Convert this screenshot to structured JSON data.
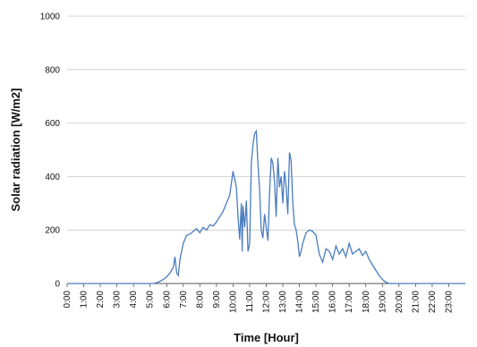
{
  "chart_data": {
    "type": "line",
    "title": "",
    "xlabel": "Time [Hour]",
    "ylabel": "Solar radiation [W/m2]",
    "ylim": [
      0,
      1000
    ],
    "xlim": [
      0,
      24
    ],
    "yticks": [
      0,
      200,
      400,
      600,
      800,
      1000
    ],
    "xtick_labels": [
      "0:00",
      "1:00",
      "2:00",
      "3:00",
      "4:00",
      "5:00",
      "6:00",
      "7:00",
      "8:00",
      "9:00",
      "10:00",
      "11:00",
      "12:00",
      "13:00",
      "14:00",
      "15:00",
      "16:00",
      "17:00",
      "18:00",
      "19:00",
      "20:00",
      "21:00",
      "22:00",
      "23:00"
    ],
    "grid": true,
    "series_color": "#4a7cc0",
    "series": [
      {
        "x": [
          0,
          5.2,
          5.5,
          5.8,
          6.0,
          6.2,
          6.4,
          6.5,
          6.6,
          6.7,
          6.8,
          6.9,
          7.0,
          7.2,
          7.4,
          7.6,
          7.8,
          8.0,
          8.2,
          8.4,
          8.6,
          8.8,
          9.0,
          9.2,
          9.4,
          9.6,
          9.8,
          10.0,
          10.2,
          10.3,
          10.4,
          10.5,
          10.55,
          10.6,
          10.7,
          10.8,
          10.9,
          11.0,
          11.1,
          11.2,
          11.3,
          11.4,
          11.5,
          11.6,
          11.7,
          11.8,
          11.9,
          12.0,
          12.1,
          12.2,
          12.3,
          12.4,
          12.5,
          12.6,
          12.7,
          12.8,
          12.9,
          13.0,
          13.1,
          13.2,
          13.3,
          13.4,
          13.5,
          13.6,
          13.7,
          13.8,
          13.9,
          14.0,
          14.1,
          14.2,
          14.4,
          14.6,
          14.8,
          15.0,
          15.2,
          15.4,
          15.6,
          15.8,
          16.0,
          16.2,
          16.4,
          16.6,
          16.8,
          17.0,
          17.2,
          17.4,
          17.6,
          17.8,
          18.0,
          18.2,
          18.4,
          18.6,
          18.8,
          19.0,
          19.2,
          19.4,
          24
        ],
        "y": [
          0,
          0,
          5,
          15,
          25,
          40,
          60,
          100,
          40,
          30,
          90,
          120,
          150,
          180,
          185,
          195,
          205,
          190,
          210,
          200,
          220,
          215,
          230,
          250,
          270,
          300,
          330,
          420,
          360,
          250,
          165,
          300,
          120,
          290,
          210,
          310,
          120,
          150,
          450,
          520,
          560,
          570,
          450,
          350,
          200,
          170,
          260,
          210,
          160,
          340,
          470,
          450,
          380,
          250,
          470,
          360,
          400,
          300,
          420,
          360,
          260,
          490,
          460,
          300,
          220,
          200,
          160,
          100,
          120,
          150,
          190,
          200,
          195,
          180,
          110,
          80,
          130,
          120,
          90,
          140,
          110,
          130,
          100,
          150,
          110,
          120,
          130,
          105,
          120,
          90,
          70,
          50,
          30,
          15,
          5,
          0,
          0
        ]
      }
    ]
  }
}
